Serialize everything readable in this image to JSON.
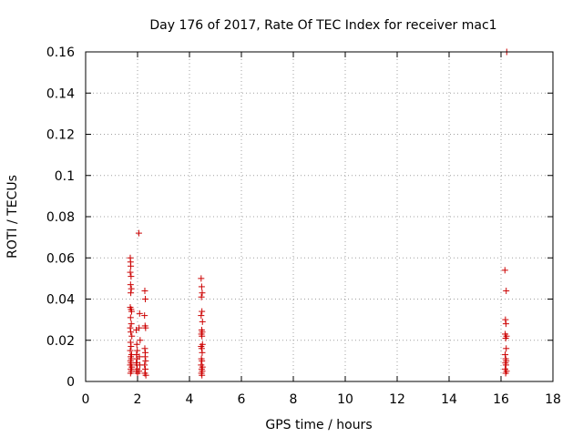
{
  "chart_data": {
    "type": "scatter",
    "title": "Day 176 of 2017, Rate Of TEC Index for receiver mac1",
    "xlabel": "GPS time / hours",
    "ylabel": "ROTI / TECUs",
    "xlim": [
      0,
      18
    ],
    "ylim": [
      0,
      0.16
    ],
    "xticks": [
      0,
      2,
      4,
      6,
      8,
      10,
      12,
      14,
      16,
      18
    ],
    "xtick_labels": [
      "0",
      "2",
      "4",
      "6",
      "8",
      "10",
      "12",
      "14",
      "16",
      "18"
    ],
    "yticks": [
      0,
      0.02,
      0.04,
      0.06,
      0.08,
      0.1,
      0.12,
      0.14,
      0.16
    ],
    "ytick_labels": [
      "0",
      "0.02",
      "0.04",
      "0.06",
      "0.08",
      "0.1",
      "0.12",
      "0.14",
      "0.16"
    ],
    "grid": true,
    "marker": "+",
    "marker_color": "#cc0000",
    "points": [
      [
        1.72,
        0.06
      ],
      [
        1.73,
        0.058
      ],
      [
        1.74,
        0.056
      ],
      [
        1.72,
        0.053
      ],
      [
        1.75,
        0.051
      ],
      [
        1.73,
        0.047
      ],
      [
        1.76,
        0.045
      ],
      [
        1.74,
        0.043
      ],
      [
        1.72,
        0.036
      ],
      [
        1.75,
        0.035
      ],
      [
        1.77,
        0.034
      ],
      [
        1.73,
        0.031
      ],
      [
        1.76,
        0.028
      ],
      [
        1.72,
        0.026
      ],
      [
        1.74,
        0.024
      ],
      [
        1.78,
        0.022
      ],
      [
        1.73,
        0.019
      ],
      [
        1.75,
        0.017
      ],
      [
        1.72,
        0.015
      ],
      [
        1.77,
        0.013
      ],
      [
        1.74,
        0.012
      ],
      [
        1.76,
        0.011
      ],
      [
        1.73,
        0.01
      ],
      [
        1.75,
        0.009
      ],
      [
        1.72,
        0.008
      ],
      [
        1.78,
        0.007
      ],
      [
        1.74,
        0.006
      ],
      [
        1.76,
        0.005
      ],
      [
        1.73,
        0.004
      ],
      [
        1.95,
        0.025
      ],
      [
        1.97,
        0.018
      ],
      [
        1.99,
        0.015
      ],
      [
        1.96,
        0.013
      ],
      [
        1.98,
        0.011
      ],
      [
        1.95,
        0.009
      ],
      [
        1.97,
        0.008
      ],
      [
        1.99,
        0.006
      ],
      [
        1.96,
        0.005
      ],
      [
        2.0,
        0.004
      ],
      [
        2.05,
        0.072
      ],
      [
        2.08,
        0.033
      ],
      [
        2.06,
        0.026
      ],
      [
        2.1,
        0.02
      ],
      [
        2.07,
        0.012
      ],
      [
        2.09,
        0.008
      ],
      [
        2.06,
        0.005
      ],
      [
        2.28,
        0.044
      ],
      [
        2.3,
        0.04
      ],
      [
        2.27,
        0.032
      ],
      [
        2.29,
        0.027
      ],
      [
        2.31,
        0.026
      ],
      [
        2.28,
        0.016
      ],
      [
        2.3,
        0.014
      ],
      [
        2.29,
        0.012
      ],
      [
        2.31,
        0.01
      ],
      [
        2.27,
        0.008
      ],
      [
        2.3,
        0.006
      ],
      [
        2.28,
        0.004
      ],
      [
        2.32,
        0.003
      ],
      [
        4.45,
        0.05
      ],
      [
        4.47,
        0.046
      ],
      [
        4.49,
        0.043
      ],
      [
        4.46,
        0.041
      ],
      [
        4.48,
        0.034
      ],
      [
        4.45,
        0.032
      ],
      [
        4.5,
        0.029
      ],
      [
        4.47,
        0.025
      ],
      [
        4.49,
        0.024
      ],
      [
        4.46,
        0.023
      ],
      [
        4.48,
        0.022
      ],
      [
        4.5,
        0.018
      ],
      [
        4.45,
        0.017
      ],
      [
        4.47,
        0.016
      ],
      [
        4.49,
        0.014
      ],
      [
        4.46,
        0.011
      ],
      [
        4.48,
        0.01
      ],
      [
        4.45,
        0.008
      ],
      [
        4.5,
        0.007
      ],
      [
        4.47,
        0.006
      ],
      [
        4.49,
        0.005
      ],
      [
        4.46,
        0.004
      ],
      [
        4.48,
        0.003
      ],
      [
        16.15,
        0.054
      ],
      [
        16.2,
        0.044
      ],
      [
        16.17,
        0.03
      ],
      [
        16.19,
        0.028
      ],
      [
        16.16,
        0.023
      ],
      [
        16.21,
        0.022
      ],
      [
        16.18,
        0.021
      ],
      [
        16.2,
        0.016
      ],
      [
        16.16,
        0.013
      ],
      [
        16.18,
        0.011
      ],
      [
        16.2,
        0.01
      ],
      [
        16.17,
        0.009
      ],
      [
        16.19,
        0.008
      ],
      [
        16.16,
        0.006
      ],
      [
        16.21,
        0.005
      ],
      [
        16.18,
        0.004
      ],
      [
        16.22,
        0.16
      ]
    ]
  }
}
